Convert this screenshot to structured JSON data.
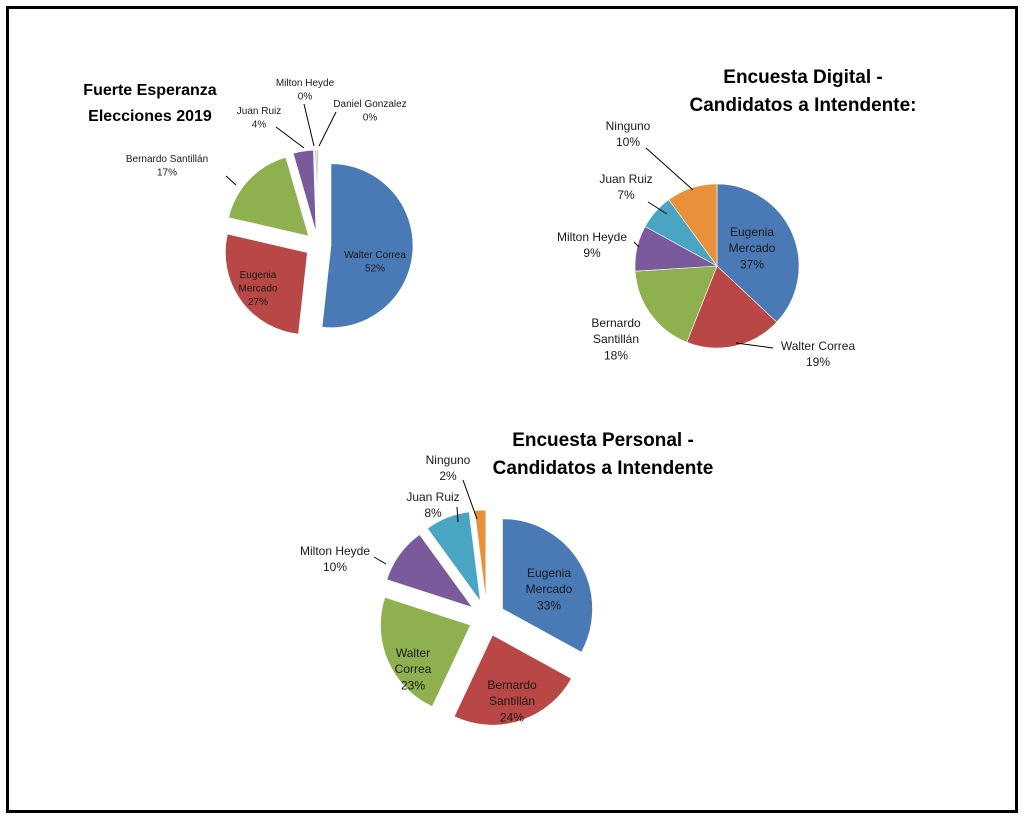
{
  "chart_data": [
    {
      "type": "pie",
      "title_lines": [
        "Fuerte Esperanza",
        "Elecciones 2019"
      ],
      "exploded": true,
      "slices": [
        {
          "name": "Walter Correa",
          "value": 52,
          "label": "52%",
          "color": "#4a7ab5"
        },
        {
          "name": "Eugenia Mercado",
          "value": 27,
          "label": "27%",
          "color": "#b94745"
        },
        {
          "name": "Bernardo Santillán",
          "value": 17,
          "label": "17%",
          "color": "#8fb04f"
        },
        {
          "name": "Juan Ruiz",
          "value": 4,
          "label": "4%",
          "color": "#7b5a9c"
        },
        {
          "name": "Milton Heyde",
          "value": 0,
          "label": "0%",
          "color": "#4aa5c2"
        },
        {
          "name": "Daniel Gonzalez",
          "value": 0,
          "label": "0%",
          "color": "#e8913a"
        }
      ]
    },
    {
      "type": "pie",
      "title_lines": [
        "Encuesta Digital -",
        "Candidatos a Intendente:"
      ],
      "exploded": false,
      "slices": [
        {
          "name": "Eugenia Mercado",
          "value": 37,
          "label": "37%",
          "color": "#4a7ab5"
        },
        {
          "name": "Walter Correa",
          "value": 19,
          "label": "19%",
          "color": "#b94745"
        },
        {
          "name": "Bernardo Santillán",
          "value": 18,
          "label": "18%",
          "color": "#8fb04f"
        },
        {
          "name": "Milton Heyde",
          "value": 9,
          "label": "9%",
          "color": "#7b5a9c"
        },
        {
          "name": "Juan Ruiz",
          "value": 7,
          "label": "7%",
          "color": "#4aa5c2"
        },
        {
          "name": "Ninguno",
          "value": 10,
          "label": "10%",
          "color": "#e8913a"
        }
      ]
    },
    {
      "type": "pie",
      "title_lines": [
        "Encuesta Personal -",
        "Candidatos a Intendente"
      ],
      "exploded": true,
      "slices": [
        {
          "name": "Eugenia Mercado",
          "value": 33,
          "label": "33%",
          "color": "#4a7ab5"
        },
        {
          "name": "Bernardo Santillán",
          "value": 24,
          "label": "24%",
          "color": "#b94745"
        },
        {
          "name": "Walter Correa",
          "value": 23,
          "label": "23%",
          "color": "#8fb04f"
        },
        {
          "name": "Milton Heyde",
          "value": 10,
          "label": "10%",
          "color": "#7b5a9c"
        },
        {
          "name": "Juan Ruiz",
          "value": 8,
          "label": "8%",
          "color": "#4aa5c2"
        },
        {
          "name": "Ninguno",
          "value": 2,
          "label": "2%",
          "color": "#e8913a"
        }
      ]
    }
  ]
}
